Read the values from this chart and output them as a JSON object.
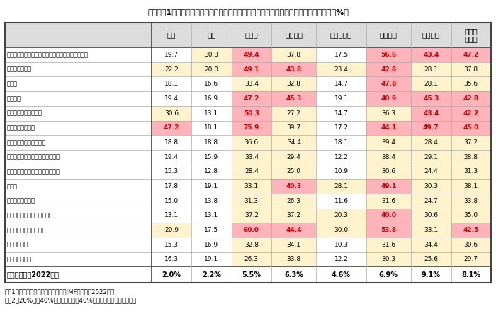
{
  "title": "図表１　1年前と比べた商品価格の上昇（「非常に上がっている」と回答した人の比率、%）",
  "columns": [
    "東京",
    "上海",
    "ソウル",
    "バンコク",
    "ジャカルタ",
    "ムンバイ",
    "ロンドン",
    "ニュー\nヨーク"
  ],
  "rows": [
    "ファッション（アパレル、靴、アクセサリーなど）",
    "家電・パソコン",
    "化粧品",
    "健康食品",
    "日用品・トイレタリー",
    "食品・飲料・酒類",
    "雑貨・家具・インテリア",
    "娯楽品（玩具、ホビー、ＤＩＹ）",
    "書籍・雑誌・音楽・ＣＤ・ＤＶＤ",
    "宝飾品",
    "事務用品・文房具",
    "自動車・自動二輪車のパーツ",
    "携帯電話（ガジェット）",
    "ペットフード",
    "オタク・グッズ"
  ],
  "data": [
    [
      19.7,
      30.3,
      49.4,
      37.8,
      17.5,
      56.6,
      43.4,
      47.2
    ],
    [
      22.2,
      20.0,
      49.1,
      43.8,
      23.4,
      42.8,
      28.1,
      37.8
    ],
    [
      18.1,
      16.6,
      33.4,
      32.8,
      14.7,
      47.8,
      28.1,
      35.6
    ],
    [
      19.4,
      16.9,
      47.2,
      45.3,
      19.1,
      40.9,
      45.3,
      42.8
    ],
    [
      30.6,
      13.1,
      50.3,
      27.2,
      14.7,
      36.3,
      43.4,
      42.2
    ],
    [
      47.2,
      18.1,
      75.9,
      39.7,
      17.2,
      44.1,
      49.7,
      45.0
    ],
    [
      18.8,
      18.8,
      36.6,
      34.4,
      18.1,
      39.4,
      28.4,
      37.2
    ],
    [
      19.4,
      15.9,
      33.4,
      29.4,
      12.2,
      38.4,
      29.1,
      28.8
    ],
    [
      15.3,
      12.8,
      28.4,
      25.0,
      10.9,
      30.6,
      24.4,
      31.3
    ],
    [
      17.8,
      19.1,
      33.1,
      40.3,
      28.1,
      49.1,
      30.3,
      38.1
    ],
    [
      15.0,
      13.8,
      31.3,
      26.3,
      11.6,
      31.6,
      24.7,
      33.8
    ],
    [
      13.1,
      13.1,
      37.2,
      37.2,
      20.3,
      40.0,
      30.6,
      35.0
    ],
    [
      20.9,
      17.5,
      60.0,
      44.4,
      30.0,
      53.8,
      33.1,
      42.5
    ],
    [
      15.3,
      16.9,
      32.8,
      34.1,
      10.3,
      31.6,
      34.4,
      30.6
    ],
    [
      16.3,
      19.1,
      26.3,
      33.8,
      12.2,
      30.3,
      25.6,
      29.7
    ]
  ],
  "inflation": [
    "2.0%",
    "2.2%",
    "5.5%",
    "6.3%",
    "4.6%",
    "6.9%",
    "9.1%",
    "8.1%"
  ],
  "inflation_label": "インフレ率（2022年）",
  "note1": "（注1）インフレ率は国際通貨基金（IMF）よる（2022年）",
  "note2": "（注2）20%以上40%未満を黄色で、40%以上を赤でハイライトした",
  "color_white": "#ffffff",
  "color_header_bg": "#dcdcdc",
  "color_yellow": "#fef3cd",
  "color_red_bg": "#ffb3bb",
  "color_red_text": "#cc0000",
  "color_normal_text": "#000000",
  "color_border_light": "#aaaaaa",
  "color_border_dark": "#444444",
  "threshold_yellow": 20.0,
  "threshold_red": 40.0,
  "col_widths_rel": [
    3.0,
    0.82,
    0.82,
    0.82,
    0.92,
    1.02,
    0.92,
    0.82,
    0.82
  ]
}
